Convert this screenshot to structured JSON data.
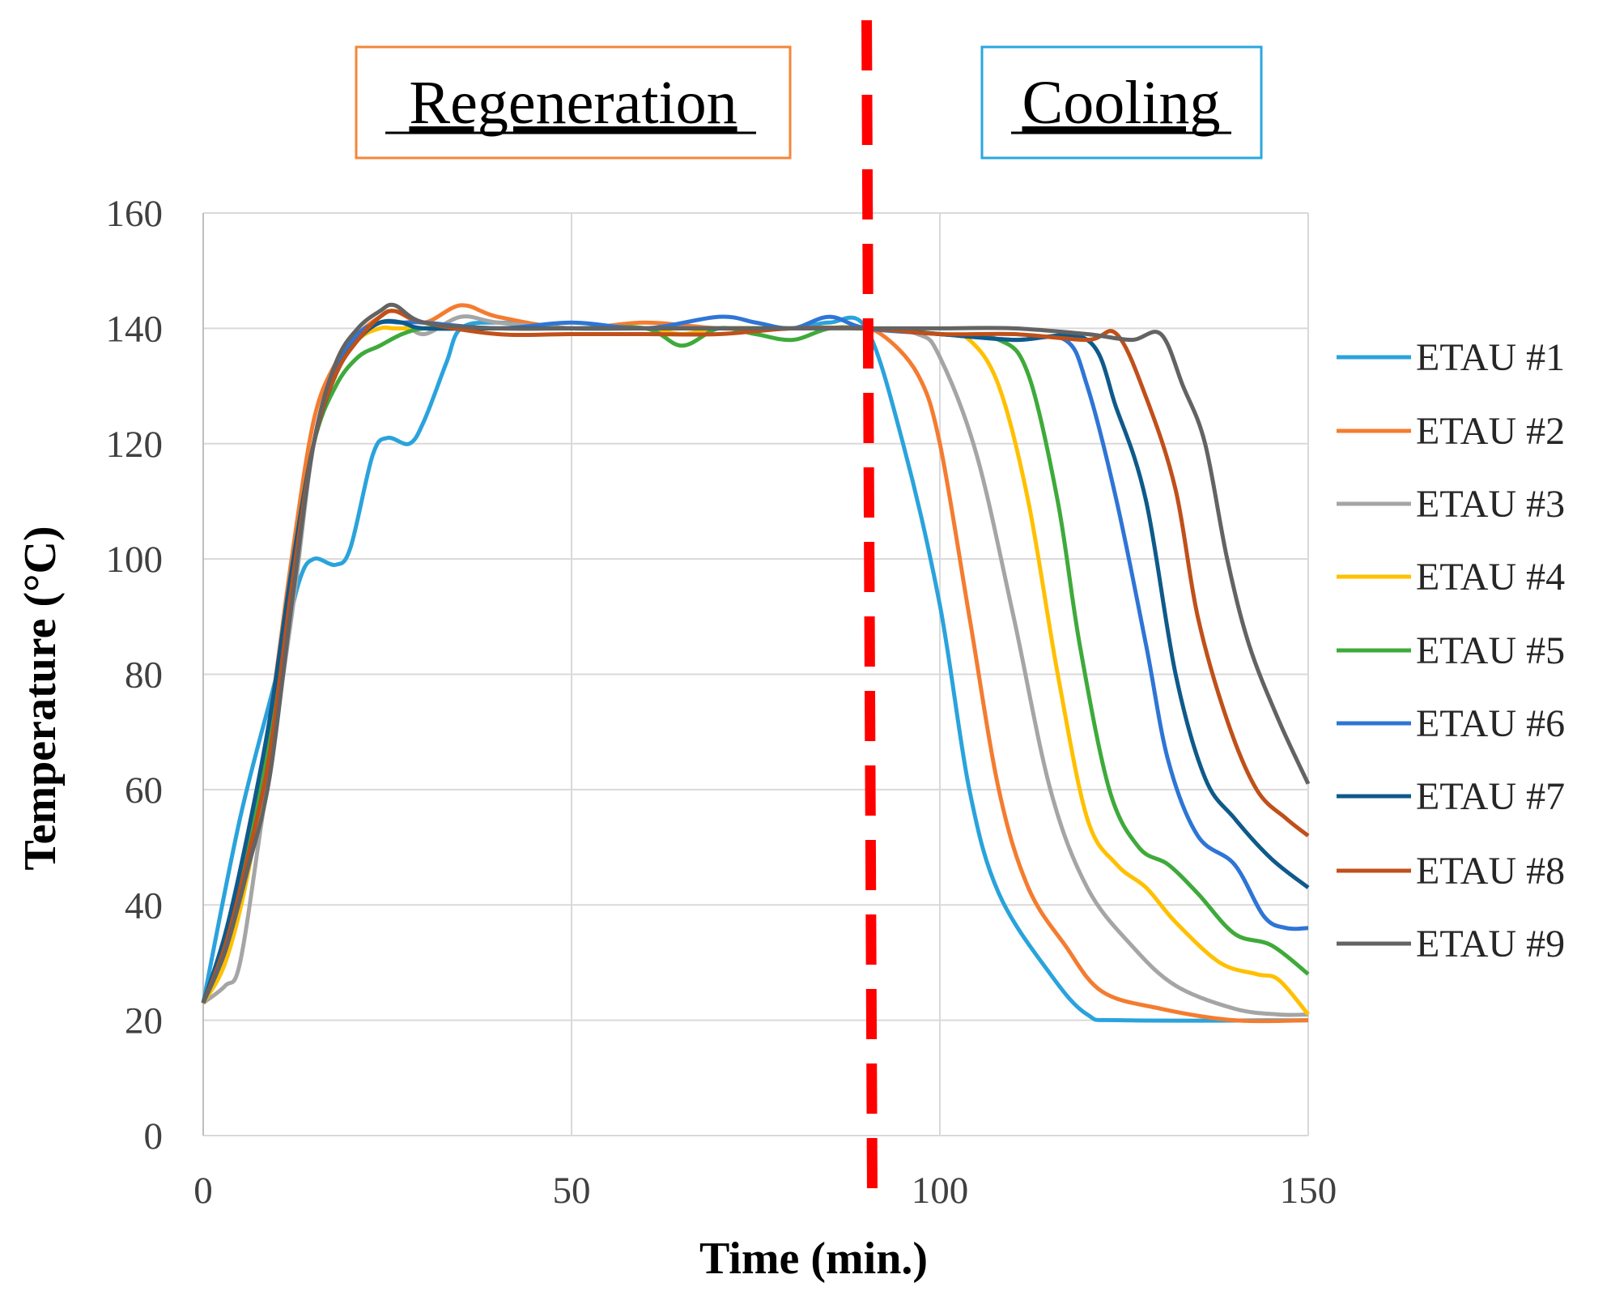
{
  "chart_data": {
    "type": "line",
    "title": "",
    "xlabel": "Time (min.)",
    "ylabel": "Temperature (°C)",
    "xlim": [
      0,
      150
    ],
    "ylim": [
      0,
      160
    ],
    "xticks": [
      0,
      50,
      100,
      150
    ],
    "yticks": [
      0,
      20,
      40,
      60,
      80,
      100,
      120,
      140,
      160
    ],
    "grid": true,
    "legend_position": "right",
    "annotations": {
      "regeneration": {
        "label": "Regeneration",
        "color": "#F4863A"
      },
      "cooling": {
        "label": "Cooling",
        "color": "#2AA7E0"
      },
      "divider": {
        "x": 90.5,
        "color": "#FF0000",
        "style": "dashed"
      }
    },
    "series": [
      {
        "name": "ETAU #1",
        "color": "#2AA3DC",
        "x": [
          0,
          5,
          10,
          13,
          15,
          18,
          20,
          23,
          25,
          28,
          30,
          33,
          35,
          40,
          50,
          60,
          70,
          80,
          85,
          90,
          95,
          100,
          104,
          108,
          115,
          120,
          125,
          150
        ],
        "y": [
          23,
          55,
          80,
          96,
          100,
          99,
          102,
          118,
          121,
          120,
          124,
          134,
          140,
          141,
          140,
          140,
          140,
          140,
          141,
          140,
          120,
          92,
          60,
          42,
          28,
          21,
          20,
          20
        ]
      },
      {
        "name": "ETAU #2",
        "color": "#F47C30",
        "x": [
          0,
          3,
          6,
          9,
          12,
          15,
          18,
          21,
          24,
          26,
          30,
          35,
          40,
          50,
          60,
          70,
          80,
          88,
          92,
          97,
          100,
          104,
          108,
          112,
          117,
          122,
          130,
          140,
          150
        ],
        "y": [
          23,
          33,
          52,
          72,
          100,
          124,
          134,
          139,
          142,
          143,
          141,
          144,
          142,
          140,
          141,
          140,
          140,
          140,
          139,
          132,
          120,
          90,
          60,
          43,
          33,
          25,
          22,
          20,
          20
        ]
      },
      {
        "name": "ETAU #3",
        "color": "#A5A5A5",
        "x": [
          0,
          3,
          5,
          8,
          12,
          15,
          18,
          21,
          24,
          27,
          30,
          35,
          40,
          50,
          60,
          70,
          80,
          90,
          97,
          100,
          105,
          110,
          115,
          120,
          126,
          132,
          140,
          146,
          150
        ],
        "y": [
          23,
          26,
          30,
          55,
          90,
          120,
          132,
          138,
          141,
          141,
          139,
          142,
          141,
          140,
          140,
          140,
          140,
          140,
          139,
          135,
          118,
          90,
          60,
          43,
          33,
          26,
          22,
          21,
          21
        ]
      },
      {
        "name": "ETAU #4",
        "color": "#FFC000",
        "x": [
          0,
          3,
          6,
          9,
          12,
          15,
          18,
          21,
          24,
          26,
          30,
          35,
          40,
          50,
          60,
          65,
          70,
          80,
          90,
          100,
          104,
          108,
          112,
          116,
          120,
          124,
          128,
          132,
          138,
          143,
          146,
          150
        ],
        "y": [
          23,
          30,
          45,
          68,
          96,
          120,
          132,
          138,
          140,
          140,
          140,
          140,
          140,
          140,
          140,
          139,
          140,
          140,
          140,
          139,
          138,
          130,
          110,
          80,
          55,
          47,
          43,
          37,
          30,
          28,
          27,
          21
        ]
      },
      {
        "name": "ETAU #5",
        "color": "#3EAA3A",
        "x": [
          0,
          3,
          6,
          9,
          12,
          15,
          18,
          21,
          24,
          27,
          30,
          35,
          40,
          50,
          60,
          65,
          70,
          75,
          80,
          85,
          90,
          100,
          108,
          112,
          116,
          119,
          123,
          127,
          131,
          135,
          140,
          145,
          150
        ],
        "y": [
          23,
          33,
          50,
          70,
          98,
          120,
          130,
          135,
          137,
          139,
          140,
          140,
          140,
          140,
          140,
          137,
          140,
          139,
          138,
          140,
          140,
          139,
          138,
          132,
          110,
          85,
          60,
          50,
          47,
          42,
          35,
          33,
          28
        ]
      },
      {
        "name": "ETAU #6",
        "color": "#2E75D6",
        "x": [
          0,
          3,
          6,
          9,
          12,
          15,
          18,
          21,
          24,
          27,
          30,
          40,
          50,
          60,
          70,
          75,
          80,
          85,
          90,
          100,
          110,
          117,
          120,
          124,
          128,
          131,
          135,
          140,
          144,
          147,
          150
        ],
        "y": [
          23,
          35,
          52,
          72,
          98,
          120,
          133,
          139,
          141,
          141,
          141,
          140,
          141,
          140,
          142,
          141,
          140,
          142,
          140,
          139,
          138,
          138,
          130,
          110,
          85,
          65,
          52,
          47,
          38,
          36,
          36
        ]
      },
      {
        "name": "ETAU #7",
        "color": "#0E5A8A",
        "x": [
          0,
          3,
          6,
          9,
          12,
          15,
          18,
          21,
          24,
          27,
          30,
          40,
          50,
          60,
          70,
          80,
          90,
          100,
          110,
          120,
          124,
          128,
          132,
          136,
          140,
          145,
          150
        ],
        "y": [
          23,
          35,
          52,
          72,
          98,
          120,
          132,
          138,
          141,
          141,
          140,
          140,
          140,
          140,
          140,
          140,
          140,
          139,
          138,
          138,
          126,
          110,
          80,
          62,
          55,
          48,
          43
        ]
      },
      {
        "name": "ETAU #8",
        "color": "#C0501A",
        "x": [
          0,
          3,
          6,
          9,
          12,
          15,
          18,
          21,
          24,
          26,
          30,
          40,
          50,
          60,
          70,
          80,
          90,
          100,
          110,
          120,
          124,
          128,
          132,
          135,
          139,
          143,
          147,
          150
        ],
        "y": [
          23,
          33,
          48,
          66,
          95,
          120,
          132,
          138,
          142,
          143,
          141,
          139,
          139,
          139,
          139,
          140,
          140,
          139,
          139,
          138,
          139,
          128,
          112,
          90,
          72,
          60,
          55,
          52
        ]
      },
      {
        "name": "ETAU #9",
        "color": "#636363",
        "x": [
          0,
          3,
          6,
          9,
          12,
          15,
          18,
          21,
          24,
          26,
          30,
          40,
          50,
          60,
          70,
          80,
          90,
          100,
          110,
          120,
          126,
          130,
          133,
          136,
          139,
          142,
          146,
          150
        ],
        "y": [
          23,
          32,
          46,
          62,
          92,
          120,
          134,
          140,
          143,
          144,
          141,
          140,
          140,
          140,
          140,
          140,
          140,
          140,
          140,
          139,
          138,
          139,
          130,
          120,
          100,
          85,
          72,
          61
        ]
      }
    ]
  }
}
